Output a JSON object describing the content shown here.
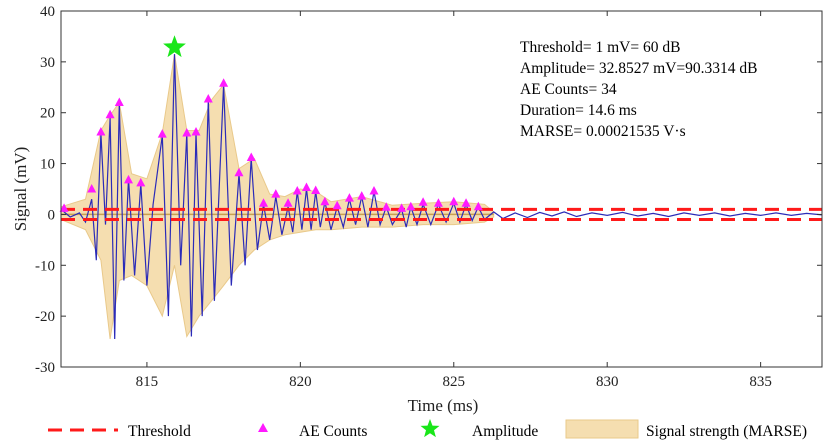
{
  "chart_data": {
    "type": "line",
    "xlabel": "Time (ms)",
    "ylabel": "Signal (mV)",
    "xlim": [
      812.2,
      837
    ],
    "ylim": [
      -30,
      40
    ],
    "xticks": [
      815,
      820,
      825,
      830,
      835
    ],
    "yticks": [
      -30,
      -20,
      -10,
      0,
      10,
      20,
      30,
      40
    ],
    "grid": false,
    "legend_placement": "bottom",
    "annotations": [
      "Threshold= 1 mV= 60 dB",
      "Amplitude= 32.8527 mV=90.3314 dB",
      "AE Counts= 34",
      "Duration= 14.6 ms",
      "MARSE= 0.00021535 V·s"
    ],
    "legend": [
      {
        "key": "threshold",
        "label": "Threshold"
      },
      {
        "key": "ae_counts",
        "label": "AE Counts"
      },
      {
        "key": "amplitude",
        "label": "Amplitude"
      },
      {
        "key": "marse",
        "label": "Signal strength (MARSE)"
      }
    ],
    "threshold": {
      "upper": 1,
      "lower": -1
    },
    "amplitude_point": {
      "x": 815.9,
      "y": 32.8527
    },
    "ae_counts": {
      "x": [
        812.3,
        813.2,
        813.5,
        813.8,
        814.1,
        814.4,
        814.8,
        815.5,
        815.9,
        816.3,
        816.6,
        817.0,
        817.5,
        818.0,
        818.4,
        818.8,
        819.2,
        819.6,
        819.9,
        820.2,
        820.5,
        820.8,
        821.2,
        821.6,
        822.0,
        822.4,
        822.8,
        823.3,
        823.6,
        824.0,
        824.5,
        825.0,
        825.4,
        825.8
      ],
      "y": [
        1.2,
        5.0,
        16.2,
        19.6,
        22.0,
        6.8,
        6.2,
        15.8,
        32.9,
        16.0,
        16.2,
        22.7,
        25.8,
        8.2,
        11.2,
        2.2,
        4.0,
        2.2,
        4.6,
        5.3,
        4.7,
        2.5,
        1.7,
        3.2,
        3.6,
        4.6,
        1.4,
        1.2,
        1.5,
        2.4,
        2.2,
        2.5,
        2.2,
        1.5
      ]
    },
    "envelope": {
      "x": [
        812.2,
        813.0,
        813.5,
        813.8,
        814.1,
        814.5,
        815.0,
        815.5,
        815.9,
        816.3,
        816.7,
        817.1,
        817.5,
        818.0,
        818.5,
        819.0,
        819.5,
        820.0,
        820.5,
        821.0,
        822.0,
        823.0,
        824.0,
        825.0,
        826.0,
        826.3
      ],
      "upper": [
        1.5,
        3.0,
        16.5,
        19.5,
        22.0,
        8.0,
        7.0,
        16.0,
        31.5,
        16.5,
        16.5,
        22.5,
        25.5,
        9.0,
        11.0,
        4.0,
        3.5,
        5.0,
        4.5,
        2.5,
        3.5,
        1.8,
        2.2,
        2.5,
        2.0,
        0.5
      ],
      "lower": [
        -1.0,
        -3.0,
        -9.0,
        -24.5,
        -13.0,
        -12.0,
        -14.0,
        -20.0,
        -10.0,
        -24.0,
        -20.0,
        -17.0,
        -14.0,
        -10.0,
        -7.0,
        -5.0,
        -4.0,
        -3.5,
        -3.0,
        -3.0,
        -2.5,
        -2.5,
        -2.0,
        -2.0,
        -1.5,
        -0.5
      ]
    },
    "signal": {
      "x": [
        812.2,
        812.5,
        812.8,
        813.0,
        813.2,
        813.35,
        813.5,
        813.65,
        813.8,
        813.95,
        814.1,
        814.25,
        814.4,
        814.6,
        814.8,
        815.0,
        815.2,
        815.5,
        815.7,
        815.9,
        816.1,
        816.3,
        816.45,
        816.6,
        816.8,
        817.0,
        817.2,
        817.5,
        817.75,
        818.0,
        818.2,
        818.4,
        818.6,
        818.8,
        819.0,
        819.2,
        819.4,
        819.6,
        819.75,
        819.9,
        820.05,
        820.2,
        820.35,
        820.5,
        820.65,
        820.8,
        821.0,
        821.2,
        821.4,
        821.6,
        821.8,
        822.0,
        822.2,
        822.4,
        822.6,
        822.8,
        823.0,
        823.3,
        823.45,
        823.6,
        823.8,
        824.0,
        824.25,
        824.5,
        824.75,
        825.0,
        825.2,
        825.4,
        825.6,
        825.8,
        826.0,
        826.3,
        826.6,
        827.0,
        827.4,
        827.8,
        828.2,
        828.6,
        829.0,
        829.5,
        830.0,
        830.5,
        831.0,
        831.5,
        832.0,
        832.5,
        833.0,
        833.5,
        834.0,
        834.5,
        835.0,
        835.5,
        836.0,
        836.5,
        837.0
      ],
      "y": [
        1.0,
        -0.5,
        0.3,
        -1.5,
        3.0,
        -9.0,
        16.0,
        -2.0,
        19.0,
        -24.5,
        22.0,
        -13.0,
        7.0,
        -12.0,
        6.0,
        -14.0,
        2.0,
        15.5,
        -20.0,
        31.5,
        -10.0,
        16.0,
        -24.0,
        16.0,
        -20.0,
        22.5,
        -17.0,
        25.5,
        -14.0,
        8.0,
        -10.0,
        11.0,
        -7.0,
        2.0,
        -5.0,
        3.5,
        -4.0,
        1.5,
        -3.5,
        4.5,
        -3.0,
        5.0,
        -3.0,
        4.5,
        -2.5,
        2.5,
        -3.0,
        1.5,
        -2.5,
        3.0,
        -2.0,
        3.5,
        -2.5,
        4.5,
        -2.0,
        1.5,
        -2.0,
        1.0,
        -2.5,
        1.5,
        -2.0,
        2.0,
        -2.0,
        2.0,
        -1.5,
        2.2,
        -1.5,
        2.0,
        -1.2,
        1.5,
        -1.0,
        0.5,
        -0.8,
        0.3,
        -0.6,
        0.4,
        -0.3,
        0.5,
        -0.4,
        0.3,
        -0.2,
        0.4,
        -0.3,
        0.2,
        -0.4,
        0.3,
        -0.2,
        0.3,
        -0.3,
        0.2,
        -0.2,
        0.3,
        -0.2,
        0.2,
        -0.1
      ]
    }
  },
  "colors": {
    "signal": "#2b2bb8",
    "envelope_fill": "#f5deb0",
    "envelope_edge": "#e9c98a",
    "threshold": "#ff1a1a",
    "ae_marker": "#ff1aff",
    "amplitude_marker": "#19e619",
    "axis": "#333333",
    "zero_line": "#c8a050"
  }
}
